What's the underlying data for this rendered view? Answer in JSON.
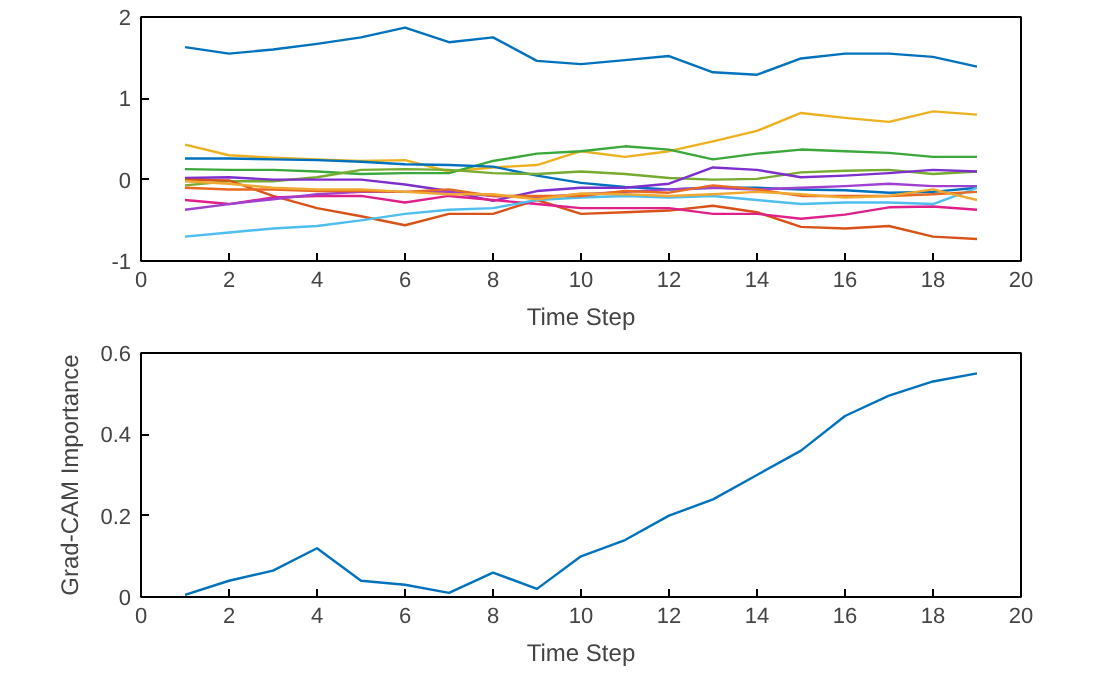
{
  "chart_data": [
    {
      "type": "line",
      "xlabel": "Time Step",
      "x": [
        1,
        2,
        3,
        4,
        5,
        6,
        7,
        8,
        9,
        10,
        11,
        12,
        13,
        14,
        15,
        16,
        17,
        18,
        19
      ],
      "xlim": [
        0,
        20
      ],
      "xticks": [
        0,
        2,
        4,
        6,
        8,
        10,
        12,
        14,
        16,
        18,
        20
      ],
      "ylim": [
        -1,
        2
      ],
      "yticks": [
        -1,
        0,
        1,
        2
      ],
      "series": [
        {
          "color": "#0072bd",
          "values": [
            1.63,
            1.55,
            1.6,
            1.67,
            1.75,
            1.87,
            1.69,
            1.75,
            1.46,
            1.42,
            1.47,
            1.52,
            1.32,
            1.29,
            1.49,
            1.55,
            1.55,
            1.51,
            1.39
          ]
        },
        {
          "color": "#edb120",
          "values": [
            0.43,
            0.3,
            0.27,
            0.25,
            0.23,
            0.24,
            0.1,
            0.15,
            0.18,
            0.35,
            0.28,
            0.35,
            0.47,
            0.6,
            0.82,
            0.76,
            0.71,
            0.84,
            0.8
          ]
        },
        {
          "color": "#3aa83a",
          "values": [
            0.13,
            0.12,
            0.12,
            0.1,
            0.07,
            0.08,
            0.08,
            0.23,
            0.32,
            0.35,
            0.41,
            0.37,
            0.25,
            0.32,
            0.37,
            0.35,
            0.33,
            0.28,
            0.28
          ]
        },
        {
          "color": "#0072bd",
          "values": [
            0.26,
            0.26,
            0.25,
            0.24,
            0.22,
            0.19,
            0.18,
            0.16,
            0.05,
            -0.04,
            -0.09,
            -0.12,
            -0.1,
            -0.1,
            -0.12,
            -0.13,
            -0.16,
            -0.15,
            -0.1
          ]
        },
        {
          "color": "#77ac30",
          "values": [
            -0.07,
            -0.02,
            -0.02,
            0.03,
            0.12,
            0.13,
            0.12,
            0.08,
            0.07,
            0.1,
            0.07,
            0.02,
            0.0,
            0.01,
            0.09,
            0.11,
            0.12,
            0.07,
            0.1
          ]
        },
        {
          "color": "#7e2fce",
          "values": [
            0.02,
            0.03,
            0.0,
            0.0,
            0.0,
            -0.06,
            -0.14,
            -0.26,
            -0.14,
            -0.1,
            -0.1,
            -0.05,
            0.15,
            0.12,
            0.03,
            0.05,
            0.08,
            0.12,
            0.1
          ]
        },
        {
          "color": "#d95319",
          "values": [
            0.0,
            -0.01,
            -0.2,
            -0.35,
            -0.45,
            -0.56,
            -0.42,
            -0.42,
            -0.25,
            -0.42,
            -0.4,
            -0.38,
            -0.32,
            -0.4,
            -0.58,
            -0.6,
            -0.57,
            -0.7,
            -0.73
          ]
        },
        {
          "color": "#e0208a",
          "values": [
            -0.25,
            -0.3,
            -0.22,
            -0.2,
            -0.2,
            -0.28,
            -0.2,
            -0.25,
            -0.3,
            -0.35,
            -0.35,
            -0.35,
            -0.42,
            -0.42,
            -0.48,
            -0.43,
            -0.34,
            -0.33,
            -0.37
          ]
        },
        {
          "color": "#a040d0",
          "values": [
            -0.37,
            -0.3,
            -0.24,
            -0.18,
            -0.15,
            -0.15,
            -0.15,
            -0.2,
            -0.22,
            -0.18,
            -0.15,
            -0.12,
            -0.1,
            -0.12,
            -0.1,
            -0.08,
            -0.05,
            -0.08,
            -0.08
          ]
        },
        {
          "color": "#4dbeee",
          "values": [
            -0.7,
            -0.65,
            -0.6,
            -0.57,
            -0.5,
            -0.42,
            -0.37,
            -0.35,
            -0.25,
            -0.22,
            -0.2,
            -0.22,
            -0.2,
            -0.25,
            -0.3,
            -0.28,
            -0.28,
            -0.3,
            -0.1
          ]
        },
        {
          "color": "#e86a20",
          "values": [
            -0.1,
            -0.12,
            -0.12,
            -0.14,
            -0.14,
            -0.15,
            -0.12,
            -0.2,
            -0.2,
            -0.2,
            -0.14,
            -0.16,
            -0.07,
            -0.12,
            -0.2,
            -0.2,
            -0.2,
            -0.18,
            -0.15
          ]
        },
        {
          "color": "#f0a830",
          "values": [
            -0.02,
            -0.05,
            -0.1,
            -0.12,
            -0.12,
            -0.15,
            -0.18,
            -0.18,
            -0.24,
            -0.17,
            -0.18,
            -0.2,
            -0.18,
            -0.15,
            -0.18,
            -0.22,
            -0.2,
            -0.12,
            -0.25
          ]
        }
      ]
    },
    {
      "type": "line",
      "xlabel": "Time Step",
      "ylabel": "Grad-CAM Importance",
      "x": [
        1,
        2,
        3,
        4,
        5,
        6,
        7,
        8,
        9,
        10,
        11,
        12,
        13,
        14,
        15,
        16,
        17,
        18,
        19
      ],
      "xlim": [
        0,
        20
      ],
      "xticks": [
        0,
        2,
        4,
        6,
        8,
        10,
        12,
        14,
        16,
        18,
        20
      ],
      "ylim": [
        0,
        0.6
      ],
      "yticks": [
        0,
        0.2,
        0.4,
        0.6
      ],
      "series": [
        {
          "color": "#0072bd",
          "values": [
            0.005,
            0.04,
            0.065,
            0.12,
            0.04,
            0.03,
            0.01,
            0.06,
            0.02,
            0.1,
            0.14,
            0.2,
            0.24,
            0.3,
            0.36,
            0.445,
            0.495,
            0.53,
            0.55
          ]
        }
      ]
    }
  ]
}
